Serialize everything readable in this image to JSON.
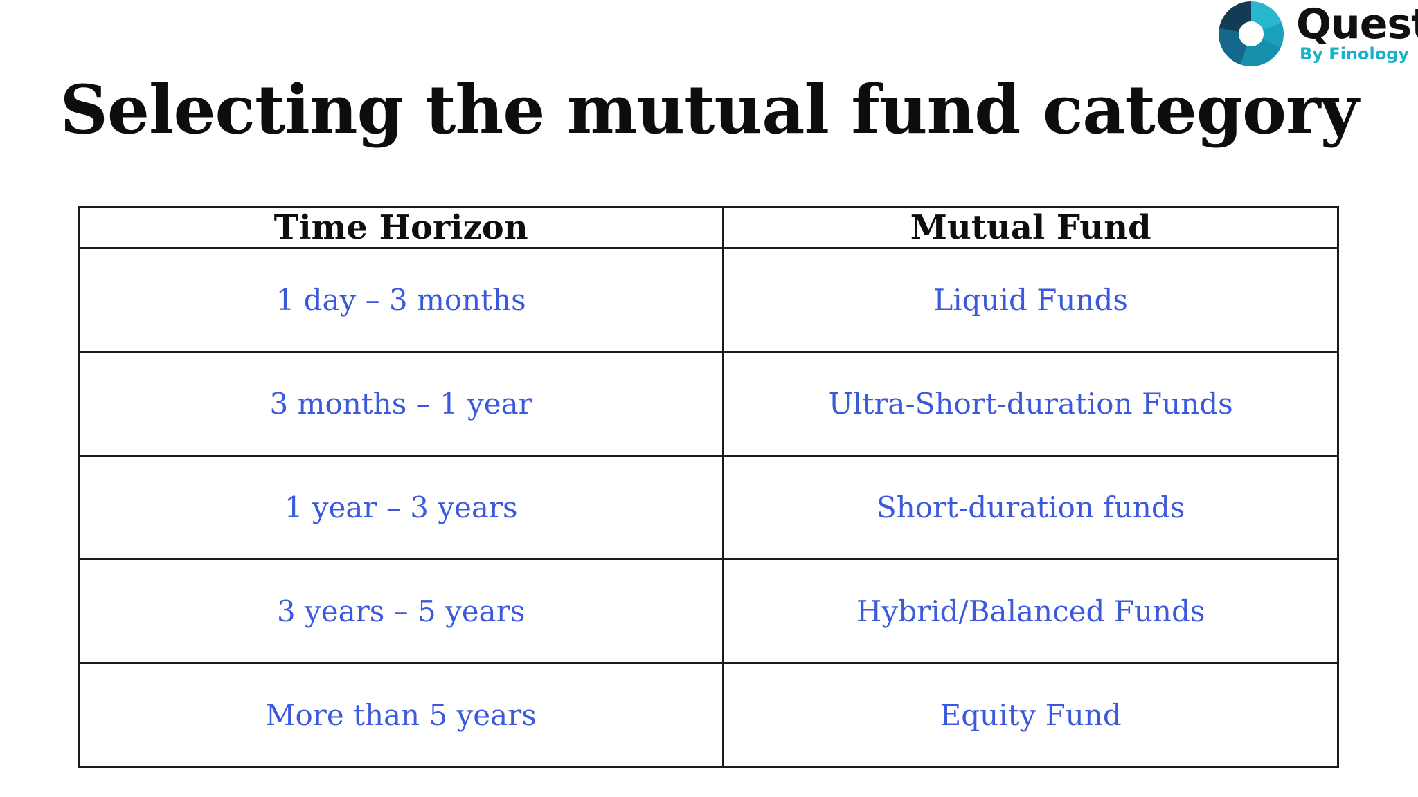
{
  "logo": {
    "brand": "Quest",
    "tagline": "By Finology",
    "donut_colors": [
      "#123c54",
      "#29b7ce",
      "#1b9fba",
      "#1790ab",
      "#15678c"
    ],
    "tagline_color": "#18b1c9"
  },
  "title": "Selecting the mutual fund category",
  "table": {
    "headers": [
      "Time Horizon",
      "Mutual Fund"
    ],
    "rows": [
      [
        "1 day – 3 months",
        "Liquid Funds"
      ],
      [
        "3 months – 1 year",
        "Ultra-Short-duration Funds"
      ],
      [
        "1 year – 3 years",
        "Short-duration funds"
      ],
      [
        "3 years – 5 years",
        "Hybrid/Balanced Funds"
      ],
      [
        "More than 5 years",
        "Equity Fund"
      ]
    ],
    "body_text_color": "#3b59dc",
    "border_color": "#1a1a1a"
  }
}
